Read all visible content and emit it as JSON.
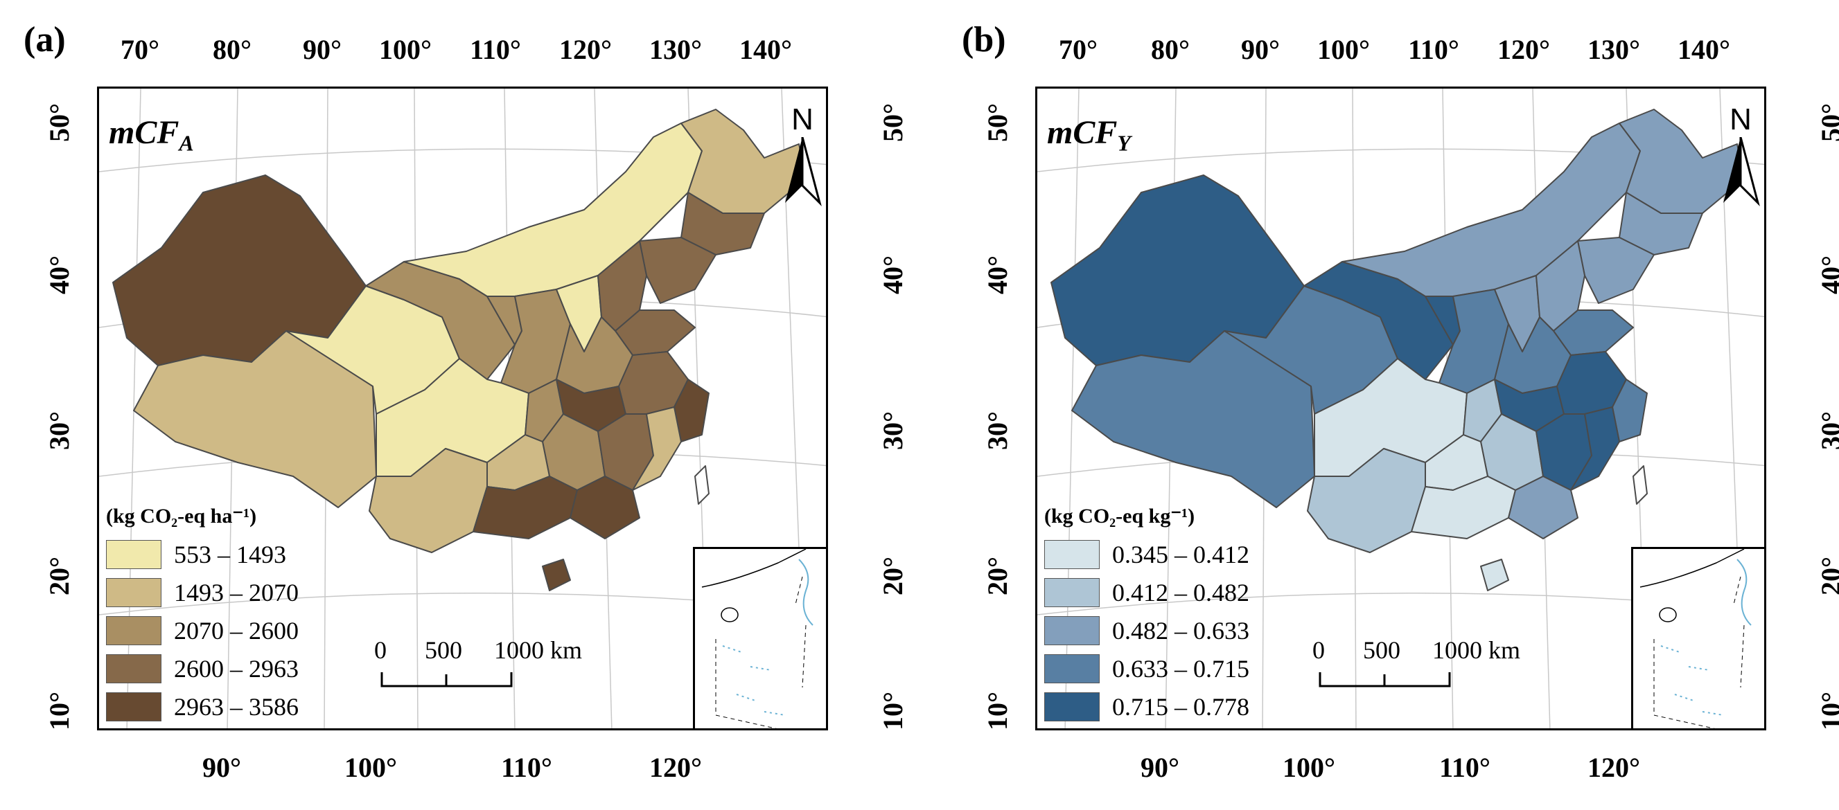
{
  "panels": [
    {
      "letter": "(a)",
      "title_main": "mCF",
      "title_sub": "A",
      "legend_title": "(kg CO₂-eq ha⁻¹)",
      "legend_items": [
        {
          "label": "553 – 1493",
          "color": "#f1e9ac"
        },
        {
          "label": "1493 – 2070",
          "color": "#cfba86"
        },
        {
          "label": "2070 – 2600",
          "color": "#a98f63"
        },
        {
          "label": "2600 – 2963",
          "color": "#86694a"
        },
        {
          "label": "2963 – 3586",
          "color": "#674a31"
        }
      ]
    },
    {
      "letter": "(b)",
      "title_main": "mCF",
      "title_sub": "Y",
      "legend_title": "(kg CO₂-eq kg⁻¹)",
      "legend_items": [
        {
          "label": "0.345 – 0.412",
          "color": "#d6e4ea"
        },
        {
          "label": "0.412 – 0.482",
          "color": "#aec5d5"
        },
        {
          "label": "0.482 – 0.633",
          "color": "#839fbc"
        },
        {
          "label": "0.633 – 0.715",
          "color": "#587fa3"
        },
        {
          "label": "0.715 – 0.778",
          "color": "#2e5d86"
        }
      ]
    }
  ],
  "axes": {
    "top_ticks": [
      "70°",
      "80°",
      "90°",
      "100°",
      "110°",
      "120°",
      "130°",
      "140°"
    ],
    "bottom_ticks": [
      "90°",
      "100°",
      "110°",
      "120°"
    ],
    "lat_ticks": [
      "50°",
      "40°",
      "30°",
      "20°",
      "10°"
    ]
  },
  "scale_bar": {
    "zero": "0",
    "mid": "500",
    "end": "1000 km"
  },
  "north_label": "N"
}
